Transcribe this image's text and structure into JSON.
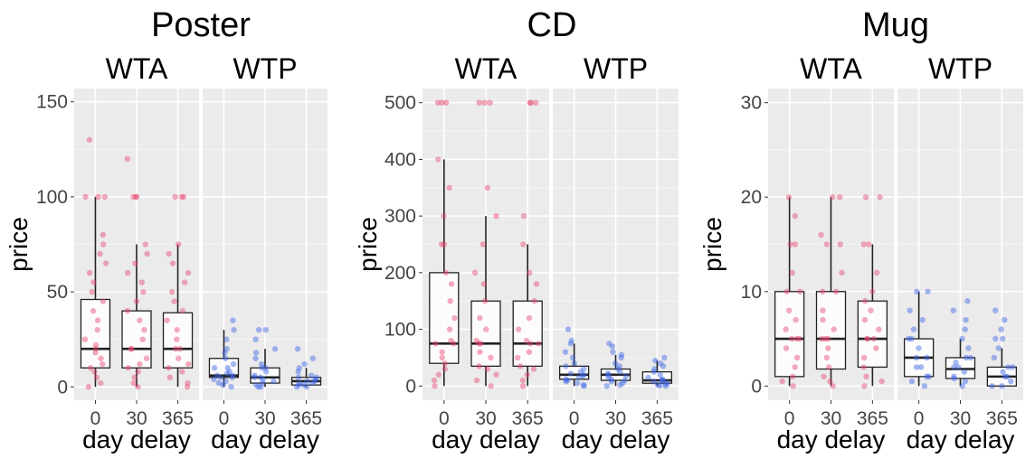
{
  "chart_data": [
    {
      "type": "boxplot",
      "title": "Poster",
      "ylabel": "price",
      "xlabel": "day delay",
      "ylim": [
        -7,
        157
      ],
      "yticks": [
        0,
        50,
        100,
        150
      ],
      "categories": [
        "0",
        "30",
        "365"
      ],
      "facets": [
        {
          "name": "WTA",
          "color": "#e8456e",
          "boxes": [
            {
              "category": "0",
              "min": 0,
              "q1": 10,
              "median": 20,
              "q3": 46,
              "max": 100,
              "points": [
                0,
                2,
                5,
                8,
                10,
                12,
                15,
                18,
                20,
                22,
                25,
                30,
                35,
                40,
                45,
                50,
                55,
                60,
                65,
                70,
                75,
                80,
                100,
                100,
                100,
                130
              ]
            },
            {
              "category": "30",
              "min": 0,
              "q1": 10,
              "median": 20,
              "q3": 40,
              "max": 75,
              "points": [
                0,
                2,
                5,
                8,
                10,
                12,
                15,
                20,
                20,
                25,
                30,
                35,
                40,
                45,
                50,
                55,
                60,
                65,
                70,
                75,
                100,
                100,
                100,
                120
              ]
            },
            {
              "category": "365",
              "min": 0,
              "q1": 10,
              "median": 20,
              "q3": 39,
              "max": 75,
              "points": [
                0,
                2,
                5,
                8,
                10,
                12,
                15,
                20,
                20,
                25,
                30,
                35,
                40,
                45,
                50,
                55,
                60,
                65,
                70,
                75,
                100,
                100,
                100
              ]
            }
          ]
        },
        {
          "name": "WTP",
          "color": "#3a64e6",
          "boxes": [
            {
              "category": "0",
              "min": 0,
              "q1": 5,
              "median": 6,
              "q3": 15,
              "max": 30,
              "points": [
                0,
                1,
                2,
                3,
                4,
                5,
                5,
                6,
                6,
                7,
                8,
                10,
                10,
                12,
                15,
                18,
                20,
                25,
                30,
                35
              ]
            },
            {
              "category": "30",
              "min": 0,
              "q1": 2,
              "median": 5,
              "q3": 10,
              "max": 20,
              "points": [
                0,
                0,
                1,
                2,
                3,
                4,
                5,
                5,
                6,
                8,
                10,
                10,
                12,
                15,
                18,
                20,
                25,
                30,
                30
              ]
            },
            {
              "category": "365",
              "min": 0,
              "q1": 1,
              "median": 3,
              "q3": 5,
              "max": 10,
              "points": [
                0,
                0,
                1,
                1,
                2,
                2,
                3,
                3,
                4,
                5,
                5,
                6,
                8,
                10,
                12,
                15,
                20
              ]
            }
          ]
        }
      ]
    },
    {
      "type": "boxplot",
      "title": "CD",
      "ylabel": "price",
      "xlabel": "day delay",
      "ylim": [
        -25,
        525
      ],
      "yticks": [
        0,
        100,
        200,
        300,
        400,
        500
      ],
      "categories": [
        "0",
        "30",
        "365"
      ],
      "facets": [
        {
          "name": "WTA",
          "color": "#e8456e",
          "boxes": [
            {
              "category": "0",
              "min": 0,
              "q1": 40,
              "median": 75,
              "q3": 200,
              "max": 400,
              "points": [
                0,
                10,
                20,
                30,
                40,
                50,
                60,
                75,
                75,
                80,
                100,
                120,
                150,
                180,
                200,
                250,
                250,
                300,
                350,
                400,
                500,
                500,
                500
              ]
            },
            {
              "category": "30",
              "min": 0,
              "q1": 35,
              "median": 75,
              "q3": 150,
              "max": 300,
              "points": [
                0,
                10,
                20,
                30,
                35,
                50,
                60,
                75,
                75,
                80,
                100,
                120,
                150,
                180,
                200,
                250,
                300,
                350,
                500,
                500,
                500
              ]
            },
            {
              "category": "365",
              "min": 0,
              "q1": 35,
              "median": 75,
              "q3": 150,
              "max": 250,
              "points": [
                0,
                10,
                20,
                30,
                35,
                50,
                60,
                75,
                75,
                80,
                100,
                120,
                150,
                180,
                200,
                250,
                300,
                500,
                500,
                500
              ]
            }
          ]
        },
        {
          "name": "WTP",
          "color": "#3a64e6",
          "boxes": [
            {
              "category": "0",
              "min": 0,
              "q1": 12,
              "median": 20,
              "q3": 35,
              "max": 75,
              "points": [
                0,
                2,
                5,
                8,
                10,
                12,
                15,
                18,
                20,
                22,
                25,
                30,
                35,
                40,
                50,
                60,
                75,
                80,
                100
              ]
            },
            {
              "category": "30",
              "min": 0,
              "q1": 10,
              "median": 20,
              "q3": 30,
              "max": 55,
              "points": [
                0,
                2,
                5,
                8,
                10,
                12,
                15,
                18,
                20,
                22,
                25,
                30,
                35,
                40,
                50,
                55,
                60,
                70,
                75
              ]
            },
            {
              "category": "365",
              "min": 0,
              "q1": 5,
              "median": 10,
              "q3": 25,
              "max": 45,
              "points": [
                0,
                1,
                2,
                4,
                5,
                8,
                10,
                10,
                12,
                15,
                20,
                25,
                30,
                35,
                40,
                45,
                50
              ]
            }
          ]
        }
      ]
    },
    {
      "type": "boxplot",
      "title": "Mug",
      "ylabel": "price",
      "xlabel": "day delay",
      "ylim": [
        -1.5,
        31.5
      ],
      "yticks": [
        0,
        10,
        20,
        30
      ],
      "categories": [
        "0",
        "30",
        "365"
      ],
      "facets": [
        {
          "name": "WTA",
          "color": "#e8456e",
          "boxes": [
            {
              "category": "0",
              "min": 0,
              "q1": 1,
              "median": 5,
              "q3": 10,
              "max": 20,
              "points": [
                0,
                0.5,
                1,
                2,
                3,
                4,
                5,
                5,
                5,
                6,
                7,
                8,
                10,
                10,
                12,
                15,
                15,
                18,
                20
              ]
            },
            {
              "category": "30",
              "min": 0,
              "q1": 1.8,
              "median": 5,
              "q3": 10,
              "max": 20,
              "points": [
                0,
                0.5,
                1,
                2,
                3,
                4,
                5,
                5,
                5,
                6,
                7,
                8,
                10,
                10,
                12,
                15,
                15,
                16,
                20,
                20
              ]
            },
            {
              "category": "365",
              "min": 0,
              "q1": 2,
              "median": 5,
              "q3": 9,
              "max": 15,
              "points": [
                0,
                0.5,
                1,
                2,
                3,
                4,
                5,
                5,
                5,
                6,
                7,
                8,
                9,
                10,
                12,
                15,
                15,
                20,
                20
              ]
            }
          ]
        },
        {
          "name": "WTP",
          "color": "#3a64e6",
          "boxes": [
            {
              "category": "0",
              "min": 0,
              "q1": 1,
              "median": 3,
              "q3": 5,
              "max": 10,
              "points": [
                0,
                0.5,
                1,
                1,
                2,
                2,
                3,
                3,
                4,
                5,
                5,
                6,
                7,
                8,
                10,
                10
              ]
            },
            {
              "category": "30",
              "min": 0,
              "q1": 0.8,
              "median": 1.8,
              "q3": 3,
              "max": 5,
              "points": [
                0,
                0.5,
                0.8,
                1,
                1.5,
                2,
                2,
                2.5,
                3,
                3,
                4,
                5,
                6,
                7,
                8,
                9
              ]
            },
            {
              "category": "365",
              "min": 0,
              "q1": 0,
              "median": 1,
              "q3": 2,
              "max": 4,
              "points": [
                0,
                0,
                0.5,
                1,
                1,
                1.5,
                2,
                2,
                3,
                4,
                5,
                5,
                6,
                7,
                8
              ]
            }
          ]
        }
      ]
    }
  ]
}
